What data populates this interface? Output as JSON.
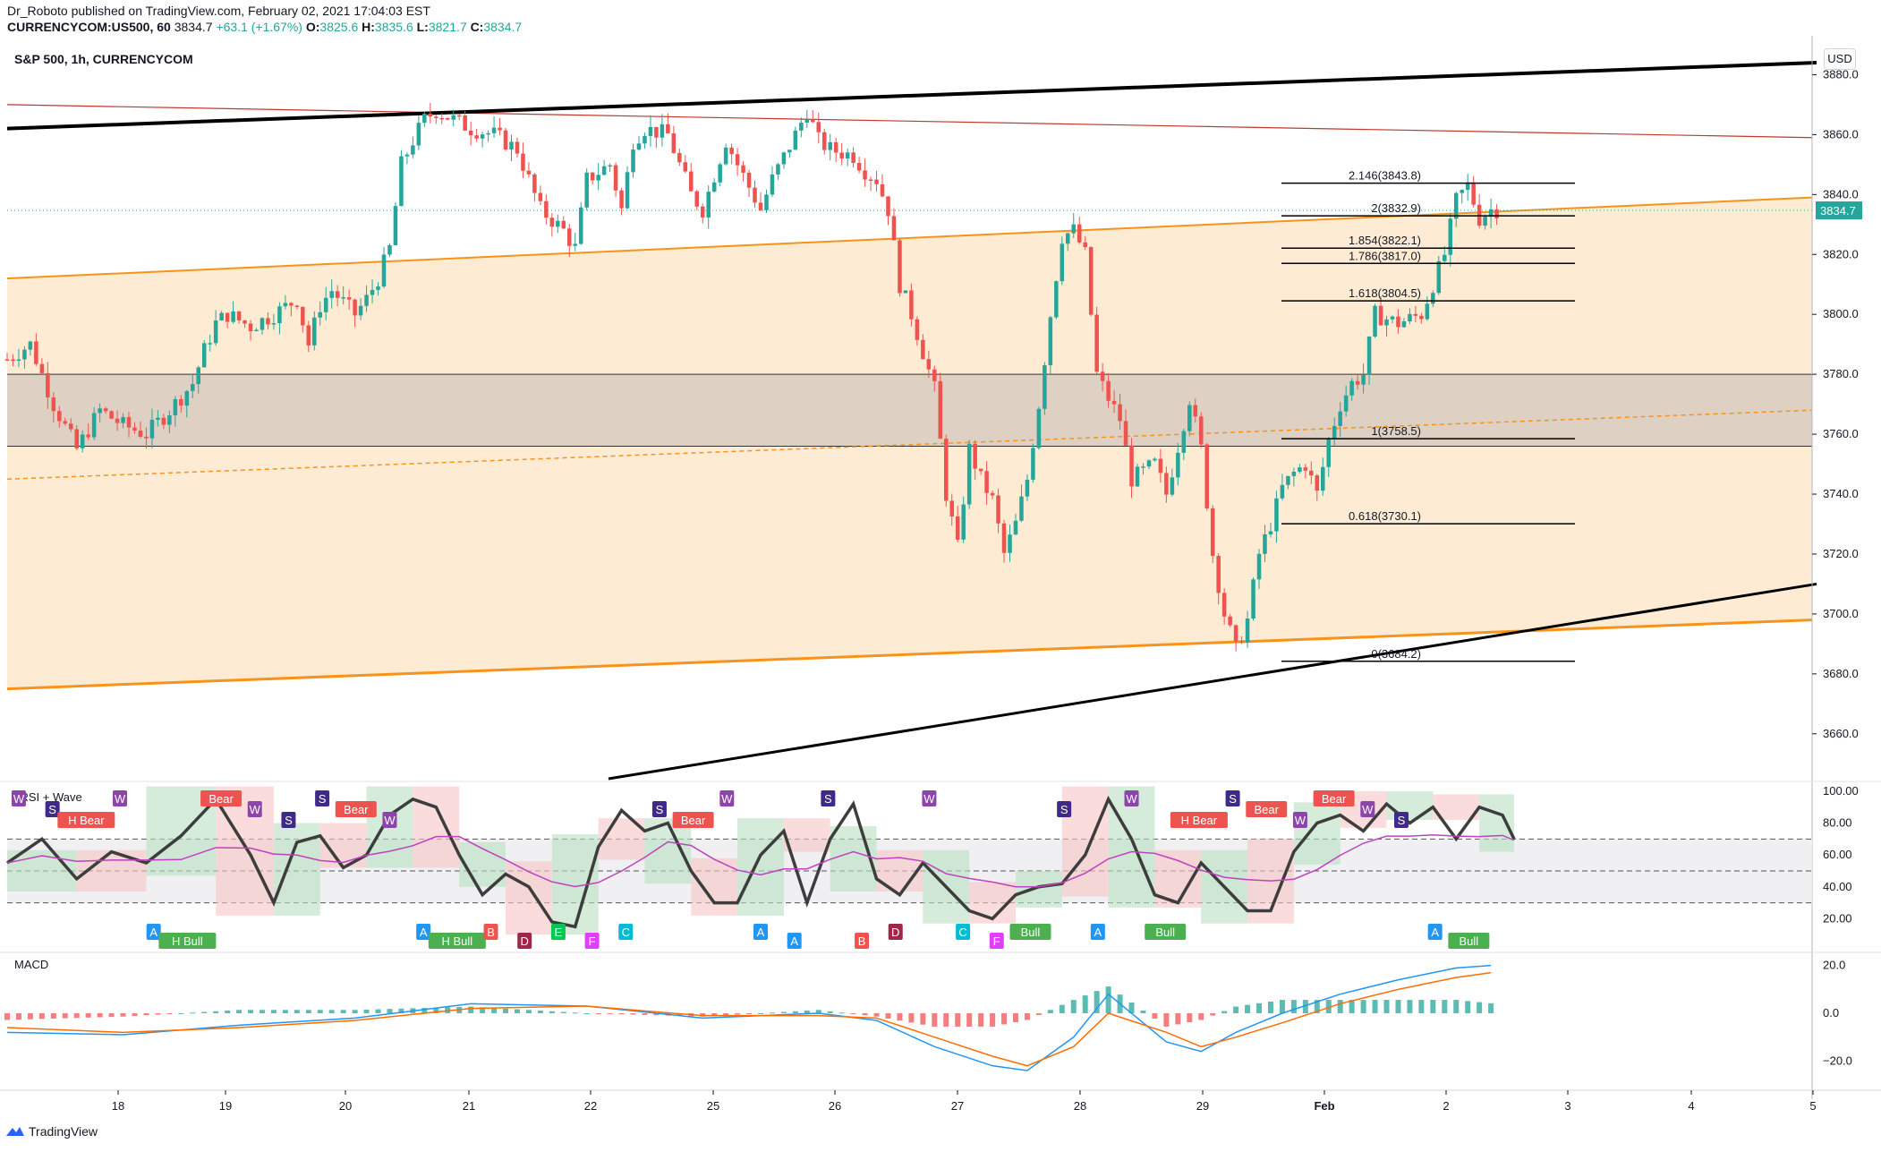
{
  "header": {
    "publisher_line": "Dr_Roboto published on TradingView.com, February 02, 2021 17:04:03 EST",
    "symbol": "CURRENCYCOM:US500, 60",
    "last": "3834.7",
    "change": "+63.1 (+1.67%)",
    "o_label": "O:",
    "o": "3825.6",
    "h_label": "H:",
    "h": "3835.6",
    "l_label": "L:",
    "l": "3821.7",
    "c_label": "C:",
    "c": "3834.7"
  },
  "chart_title": "S&P 500, 1h, CURRENCYCOM",
  "currency_button": "USD",
  "price_badge": "3834.7",
  "indicator1_title": "cRSI + Wave",
  "indicator2_title": "MACD",
  "footer_brand": "TradingView",
  "colors": {
    "up": "#26a69a",
    "down": "#ef5350",
    "channel_fill": "#fdecd3",
    "channel_line": "#f7931a",
    "zone_fill": "#d8cdc0",
    "trend_black": "#000000",
    "red_line": "#c0392b"
  },
  "chart_data": [
    {
      "type": "candlestick",
      "title": "S&P 500, 1h, CURRENCYCOM",
      "x_ticks": [
        "18",
        "19",
        "20",
        "21",
        "22",
        "25",
        "26",
        "27",
        "28",
        "29",
        "Feb",
        "2",
        "3",
        "4",
        "5"
      ],
      "y_ticks": [
        "3880.0",
        "3860.0",
        "3840.0",
        "3820.0",
        "3800.0",
        "3780.0",
        "3760.0",
        "3740.0",
        "3720.0",
        "3700.0",
        "3680.0",
        "3660.0"
      ],
      "ylim": [
        3645,
        3887
      ],
      "close_path": [
        [
          0,
          3785
        ],
        [
          2,
          3790
        ],
        [
          4,
          3770
        ],
        [
          6,
          3755
        ],
        [
          8,
          3768
        ],
        [
          10,
          3763
        ],
        [
          12,
          3760
        ],
        [
          14,
          3768
        ],
        [
          16,
          3777
        ],
        [
          17,
          3788
        ],
        [
          18,
          3797
        ],
        [
          19,
          3800
        ],
        [
          21,
          3796
        ],
        [
          23,
          3800
        ],
        [
          25,
          3805
        ],
        [
          26,
          3790
        ],
        [
          27,
          3803
        ],
        [
          28,
          3808
        ],
        [
          30,
          3800
        ],
        [
          31,
          3805
        ],
        [
          32,
          3812
        ],
        [
          33,
          3822
        ],
        [
          34,
          3850
        ],
        [
          35,
          3858
        ],
        [
          36,
          3865
        ],
        [
          37,
          3868
        ],
        [
          38,
          3866
        ],
        [
          40,
          3862
        ],
        [
          42,
          3860
        ],
        [
          44,
          3855
        ],
        [
          46,
          3835
        ],
        [
          48,
          3828
        ],
        [
          49,
          3822
        ],
        [
          50,
          3845
        ],
        [
          52,
          3850
        ],
        [
          53,
          3835
        ],
        [
          54,
          3858
        ],
        [
          55,
          3862
        ],
        [
          57,
          3860
        ],
        [
          59,
          3840
        ],
        [
          60,
          3835
        ],
        [
          62,
          3858
        ],
        [
          63,
          3850
        ],
        [
          65,
          3835
        ],
        [
          66,
          3845
        ],
        [
          68,
          3860
        ],
        [
          69,
          3868
        ],
        [
          70,
          3858
        ],
        [
          71,
          3855
        ],
        [
          73,
          3853
        ],
        [
          74,
          3848
        ],
        [
          75,
          3845
        ],
        [
          76,
          3835
        ],
        [
          77,
          3810
        ],
        [
          78,
          3800
        ],
        [
          80,
          3775
        ],
        [
          81,
          3740
        ],
        [
          82,
          3722
        ],
        [
          83,
          3755
        ],
        [
          84,
          3745
        ],
        [
          85,
          3738
        ],
        [
          86,
          3720
        ],
        [
          87,
          3730
        ],
        [
          88,
          3745
        ],
        [
          89,
          3770
        ],
        [
          90,
          3800
        ],
        [
          91,
          3826
        ],
        [
          92,
          3828
        ],
        [
          93,
          3820
        ],
        [
          94,
          3780
        ],
        [
          95,
          3772
        ],
        [
          96,
          3765
        ],
        [
          97,
          3745
        ],
        [
          99,
          3750
        ],
        [
          100,
          3740
        ],
        [
          102,
          3772
        ],
        [
          103,
          3755
        ],
        [
          104,
          3720
        ],
        [
          105,
          3700
        ],
        [
          106,
          3688
        ],
        [
          107,
          3698
        ],
        [
          108,
          3720
        ],
        [
          109,
          3730
        ],
        [
          110,
          3742
        ],
        [
          111,
          3747
        ],
        [
          112,
          3750
        ],
        [
          113,
          3740
        ],
        [
          114,
          3758
        ],
        [
          115,
          3770
        ],
        [
          116,
          3777
        ],
        [
          117,
          3780
        ],
        [
          118,
          3800
        ],
        [
          120,
          3797
        ],
        [
          122,
          3800
        ],
        [
          123,
          3810
        ],
        [
          124,
          3820
        ],
        [
          125,
          3838
        ],
        [
          126,
          3843
        ],
        [
          127,
          3832
        ],
        [
          128,
          3835
        ]
      ],
      "fibonacci": [
        {
          "label": "2.146(3843.8)",
          "value": 3843.8
        },
        {
          "label": "2(3832.9)",
          "value": 3832.9
        },
        {
          "label": "1.854(3822.1)",
          "value": 3822.1
        },
        {
          "label": "1.786(3817.0)",
          "value": 3817.0
        },
        {
          "label": "1.618(3804.5)",
          "value": 3804.5
        },
        {
          "label": "1(3758.5)",
          "value": 3758.5
        },
        {
          "label": "0.618(3730.1)",
          "value": 3730.1
        },
        {
          "label": "0(3684.2)",
          "value": 3684.2
        }
      ],
      "zone": [
        3756,
        3780
      ]
    },
    {
      "type": "line",
      "title": "cRSI + Wave",
      "y_ticks": [
        "100.00",
        "80.00",
        "60.00",
        "40.00",
        "20.00"
      ],
      "ylim": [
        0,
        105
      ],
      "levels": [
        70,
        50,
        30
      ],
      "crsi": [
        [
          0,
          55
        ],
        [
          3,
          70
        ],
        [
          6,
          45
        ],
        [
          9,
          62
        ],
        [
          12,
          55
        ],
        [
          15,
          72
        ],
        [
          18,
          95
        ],
        [
          21,
          60
        ],
        [
          23,
          30
        ],
        [
          25,
          68
        ],
        [
          27,
          72
        ],
        [
          29,
          52
        ],
        [
          31,
          60
        ],
        [
          33,
          85
        ],
        [
          35,
          95
        ],
        [
          37,
          90
        ],
        [
          39,
          60
        ],
        [
          41,
          35
        ],
        [
          43,
          48
        ],
        [
          45,
          40
        ],
        [
          47,
          18
        ],
        [
          49,
          15
        ],
        [
          51,
          65
        ],
        [
          53,
          88
        ],
        [
          55,
          75
        ],
        [
          57,
          80
        ],
        [
          59,
          50
        ],
        [
          61,
          30
        ],
        [
          63,
          30
        ],
        [
          65,
          60
        ],
        [
          67,
          75
        ],
        [
          69,
          30
        ],
        [
          71,
          70
        ],
        [
          73,
          92
        ],
        [
          75,
          45
        ],
        [
          77,
          35
        ],
        [
          79,
          55
        ],
        [
          81,
          40
        ],
        [
          83,
          25
        ],
        [
          85,
          20
        ],
        [
          87,
          35
        ],
        [
          89,
          40
        ],
        [
          91,
          42
        ],
        [
          93,
          60
        ],
        [
          95,
          95
        ],
        [
          97,
          70
        ],
        [
          99,
          35
        ],
        [
          101,
          30
        ],
        [
          103,
          55
        ],
        [
          105,
          40
        ],
        [
          107,
          25
        ],
        [
          109,
          25
        ],
        [
          111,
          62
        ],
        [
          113,
          80
        ],
        [
          115,
          85
        ],
        [
          117,
          75
        ],
        [
          119,
          92
        ],
        [
          121,
          80
        ],
        [
          123,
          90
        ],
        [
          125,
          70
        ],
        [
          127,
          90
        ],
        [
          129,
          85
        ],
        [
          130,
          70
        ]
      ],
      "signals": [
        "W",
        "S",
        "H Bear",
        "W",
        "A",
        "H Bull",
        "Bear",
        "W",
        "S",
        "S",
        "Bear",
        "W",
        "A",
        "H Bull",
        "B",
        "D",
        "E",
        "F",
        "C",
        "S",
        "Bear",
        "W",
        "A",
        "A",
        "S",
        "B",
        "D",
        "W",
        "C",
        "F",
        "Bull",
        "S",
        "A",
        "W",
        "Bull",
        "H Bear",
        "S",
        "Bear",
        "W",
        "Bear",
        "W",
        "S",
        "A",
        "Bull"
      ]
    },
    {
      "type": "bar",
      "title": "MACD",
      "y_ticks": [
        "20.0",
        "0.0",
        "−20.0"
      ],
      "ylim": [
        -30,
        24
      ],
      "macd": [
        [
          0,
          -8
        ],
        [
          10,
          -9
        ],
        [
          20,
          -5
        ],
        [
          30,
          -2
        ],
        [
          40,
          4
        ],
        [
          50,
          3
        ],
        [
          60,
          -2
        ],
        [
          70,
          0
        ],
        [
          75,
          -3
        ],
        [
          80,
          -14
        ],
        [
          85,
          -22
        ],
        [
          88,
          -24
        ],
        [
          92,
          -10
        ],
        [
          95,
          8
        ],
        [
          100,
          -12
        ],
        [
          103,
          -16
        ],
        [
          106,
          -8
        ],
        [
          110,
          0
        ],
        [
          115,
          8
        ],
        [
          120,
          14
        ],
        [
          125,
          19
        ],
        [
          128,
          20
        ]
      ],
      "signal": [
        [
          0,
          -6
        ],
        [
          10,
          -8
        ],
        [
          20,
          -6
        ],
        [
          30,
          -3
        ],
        [
          40,
          2
        ],
        [
          50,
          3
        ],
        [
          60,
          -1
        ],
        [
          70,
          -1
        ],
        [
          75,
          -2
        ],
        [
          80,
          -10
        ],
        [
          85,
          -18
        ],
        [
          88,
          -22
        ],
        [
          92,
          -14
        ],
        [
          95,
          0
        ],
        [
          100,
          -8
        ],
        [
          103,
          -14
        ],
        [
          106,
          -10
        ],
        [
          110,
          -4
        ],
        [
          115,
          4
        ],
        [
          120,
          10
        ],
        [
          125,
          15
        ],
        [
          128,
          17
        ]
      ]
    }
  ]
}
